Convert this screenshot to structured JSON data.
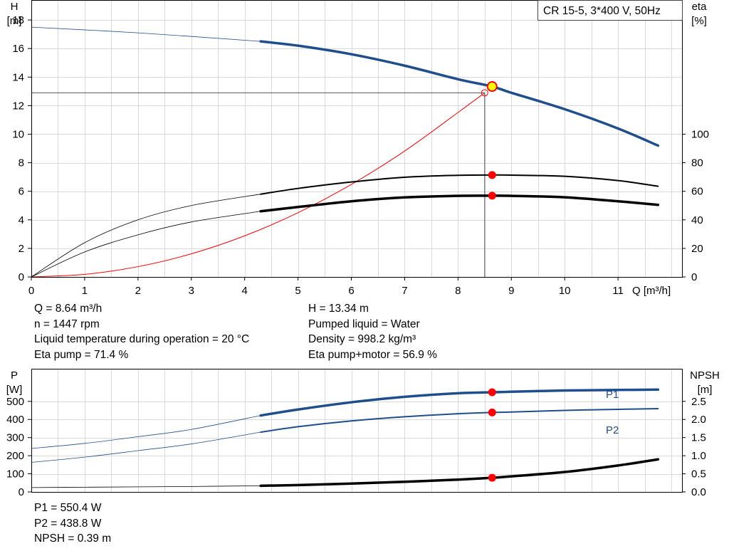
{
  "pump_label": "CR 15-5, 3*400 V, 50Hz",
  "top_info_left": [
    "Q = 8.64 m³/h",
    "n = 1447 rpm",
    "Liquid temperature during operation = 20 °C",
    "Eta pump = 71.4 %"
  ],
  "top_info_right": [
    "H = 13.34 m",
    "Pumped liquid = Water",
    "Density = 998.2 kg/m³",
    "Eta pump+motor = 56.9 %"
  ],
  "bottom_info": [
    "P1 = 550.4 W",
    "P2 = 438.8 W",
    "NPSH = 0.39 m"
  ],
  "colors": {
    "head": "#1f4e8c",
    "power": "#1f4e8c",
    "efficiency": "#000000",
    "system": "#ff0000",
    "marker": "#ff0000",
    "duty_marker": "#ffff00",
    "grid": "#d9d9d9"
  },
  "chart_data": [
    {
      "type": "line",
      "xlabel": "Q [m³/h]",
      "ylabel": [
        "H",
        "[m]"
      ],
      "y2label": [
        "eta",
        "[%]"
      ],
      "xlim": [
        0,
        12.2
      ],
      "ylim": [
        0,
        19.4
      ],
      "y2lim": [
        0,
        194
      ],
      "xticks": [
        0,
        1,
        2,
        3,
        4,
        5,
        6,
        7,
        8,
        9,
        10,
        11
      ],
      "yticks": [
        0,
        2,
        4,
        6,
        8,
        10,
        12,
        14,
        16,
        18
      ],
      "y2ticks": [
        0,
        20,
        40,
        60,
        80,
        100
      ],
      "grid": true,
      "series": [
        {
          "name": "H",
          "axis": "left",
          "x": [
            0,
            2,
            4.3,
            5,
            6,
            7,
            8,
            8.64,
            9,
            10,
            11,
            11.75
          ],
          "values": [
            17.5,
            17.1,
            16.5,
            16.2,
            15.6,
            14.8,
            13.85,
            13.34,
            12.9,
            11.75,
            10.4,
            9.2
          ],
          "solid_from": 4.3
        },
        {
          "name": "Eta pump",
          "axis": "right",
          "x": [
            0,
            1,
            2,
            3,
            4.3,
            5,
            6,
            7,
            8,
            8.64,
            9,
            10,
            11,
            11.75
          ],
          "values": [
            0,
            24,
            40,
            50,
            58,
            62,
            66.5,
            69.8,
            71.2,
            71.4,
            71.3,
            70.5,
            67.5,
            63.5
          ],
          "solid_from": 4.3
        },
        {
          "name": "Eta pump+motor",
          "axis": "right",
          "x": [
            0,
            1,
            2,
            3,
            4.3,
            5,
            6,
            7,
            8,
            8.64,
            9,
            10,
            11,
            11.75
          ],
          "values": [
            0,
            17.5,
            29.5,
            38.5,
            46,
            49,
            53,
            55.7,
            56.8,
            56.9,
            56.8,
            55.8,
            53,
            50.5
          ],
          "solid_from": 4.3
        },
        {
          "name": "System curve",
          "axis": "left",
          "x": [
            0,
            1,
            2,
            3,
            4,
            5,
            6,
            7,
            8,
            8.5
          ],
          "values": [
            0,
            0.18,
            0.72,
            1.62,
            2.88,
            4.5,
            6.48,
            8.82,
            11.52,
            12.9
          ]
        }
      ],
      "duty_point": {
        "x": 8.64,
        "y": 13.34
      },
      "system_point": {
        "x": 8.5,
        "y": 12.9
      },
      "markers": [
        {
          "x": 8.64,
          "y2": 71.4
        },
        {
          "x": 8.64,
          "y2": 56.9
        }
      ]
    },
    {
      "type": "line",
      "ylabel": [
        "P",
        "[W]"
      ],
      "y2label": [
        "NPSH",
        "[m]"
      ],
      "xlim": [
        0,
        12.2
      ],
      "ylim": [
        0,
        680
      ],
      "y2lim": [
        0,
        3.4
      ],
      "yticks": [
        0,
        100,
        200,
        300,
        400,
        500
      ],
      "y2ticks": [
        "0.0",
        "0.5",
        "1.0",
        "1.5",
        "2.0",
        "2.5"
      ],
      "grid": true,
      "series": [
        {
          "name": "P1",
          "axis": "left",
          "x": [
            0,
            1,
            2,
            3,
            4.3,
            5,
            6,
            7,
            8,
            8.64,
            9,
            10,
            11,
            11.75
          ],
          "values": [
            240,
            268,
            305,
            345,
            422,
            455,
            495,
            525,
            545,
            550.4,
            553,
            560,
            563,
            565
          ],
          "solid_from": 4.3
        },
        {
          "name": "P2",
          "axis": "left",
          "x": [
            0,
            1,
            2,
            3,
            4.3,
            5,
            6,
            7,
            8,
            8.64,
            9,
            10,
            11,
            11.75
          ],
          "values": [
            163,
            192,
            228,
            265,
            330,
            360,
            392,
            415,
            432,
            438.8,
            441,
            450,
            456,
            460
          ],
          "solid_from": 4.3
        },
        {
          "name": "NPSH",
          "axis": "right",
          "x": [
            0,
            1,
            2,
            3,
            4.3,
            5,
            6,
            7,
            8,
            8.64,
            9,
            10,
            11,
            11.75
          ],
          "values": [
            0.12,
            0.13,
            0.14,
            0.15,
            0.17,
            0.19,
            0.23,
            0.28,
            0.34,
            0.39,
            0.43,
            0.55,
            0.73,
            0.9
          ],
          "solid_from": 4.3
        }
      ],
      "markers": [
        {
          "x": 8.64,
          "y": 550.4
        },
        {
          "x": 8.64,
          "y": 438.8
        },
        {
          "x": 8.64,
          "y2": 0.39
        }
      ]
    }
  ]
}
